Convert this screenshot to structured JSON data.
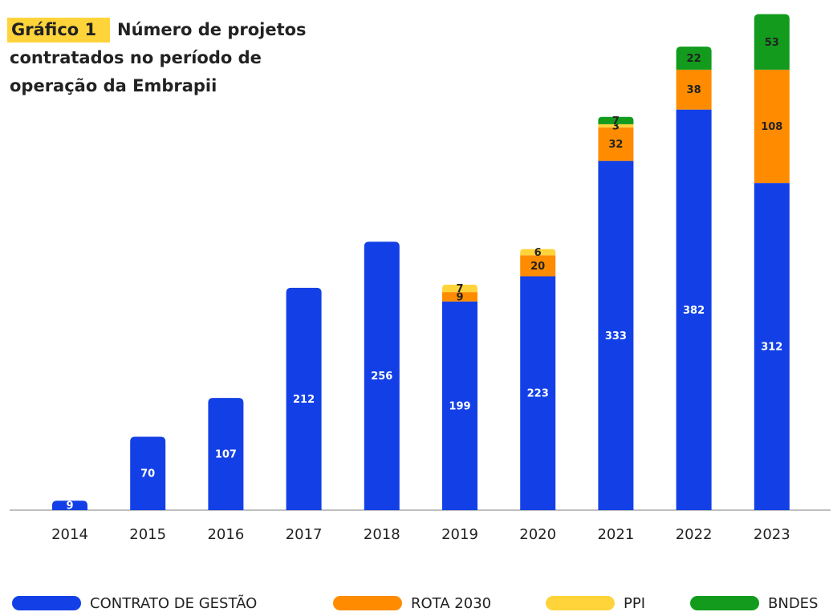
{
  "chart_data": {
    "type": "stacked_bar",
    "label": "Gráfico 1",
    "title": [
      "Número de projetos",
      "contratados no período de",
      "operação da Embrapii"
    ],
    "categories": [
      "2014",
      "2015",
      "2016",
      "2017",
      "2018",
      "2019",
      "2020",
      "2021",
      "2022",
      "2023"
    ],
    "series": [
      {
        "name": "CONTRATO DE GESTÃO",
        "color": "#1340e6",
        "values": [
          9,
          70,
          107,
          212,
          256,
          199,
          223,
          333,
          382,
          312
        ]
      },
      {
        "name": "ROTA 2030",
        "color": "#ff8c00",
        "values": [
          null,
          null,
          null,
          null,
          null,
          9,
          20,
          32,
          38,
          108
        ]
      },
      {
        "name": "PPI",
        "color": "#ffd43b",
        "values": [
          null,
          null,
          null,
          null,
          null,
          7,
          6,
          3,
          null,
          null
        ]
      },
      {
        "name": "BNDES",
        "color": "#129b1c",
        "values": [
          null,
          null,
          null,
          null,
          null,
          null,
          null,
          7,
          22,
          53
        ]
      }
    ],
    "ylim": [
      0,
      475
    ],
    "legend": "bottom"
  }
}
